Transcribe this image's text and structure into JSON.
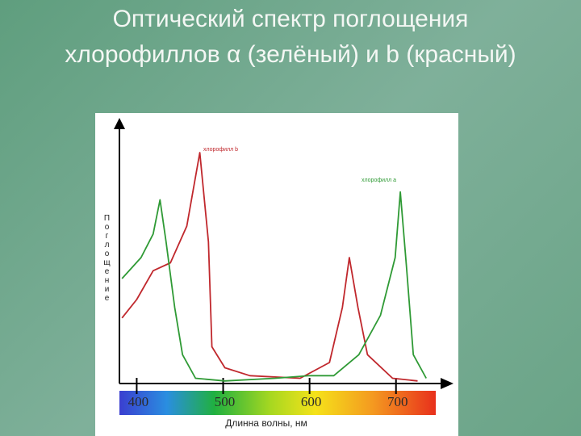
{
  "chart_data": {
    "type": "line",
    "title": "Оптический спектр поглощения хлорофиллов α (зелёный) и b (красный)",
    "x_label": "Длинна волны, нм",
    "y_label": "Поглощение",
    "xlim": [
      380,
      760
    ],
    "ylim": [
      0,
      100
    ],
    "xticks": [
      400,
      500,
      600,
      700
    ],
    "series": [
      {
        "name": "хлорофилл b",
        "color": "#c0282d",
        "x": [
          383,
          400,
          419,
          439,
          458,
          473,
          483,
          487,
          502,
          531,
          589,
          623,
          638,
          646,
          656,
          667,
          696,
          725
        ],
        "values": [
          25,
          32,
          43,
          46,
          60,
          88,
          54,
          14,
          6,
          3,
          2,
          8,
          29,
          48,
          29,
          11,
          2,
          1
        ]
      },
      {
        "name": "хлорофилл a",
        "color": "#2f9a35",
        "x": [
          383,
          405,
          419,
          427,
          434,
          444,
          453,
          468,
          502,
          560,
          599,
          628,
          657,
          682,
          699,
          705,
          712,
          720,
          735
        ],
        "values": [
          40,
          48,
          57,
          70,
          54,
          29,
          11,
          2,
          1,
          2,
          3,
          3,
          11,
          26,
          48,
          73,
          45,
          11,
          2
        ]
      }
    ]
  }
}
